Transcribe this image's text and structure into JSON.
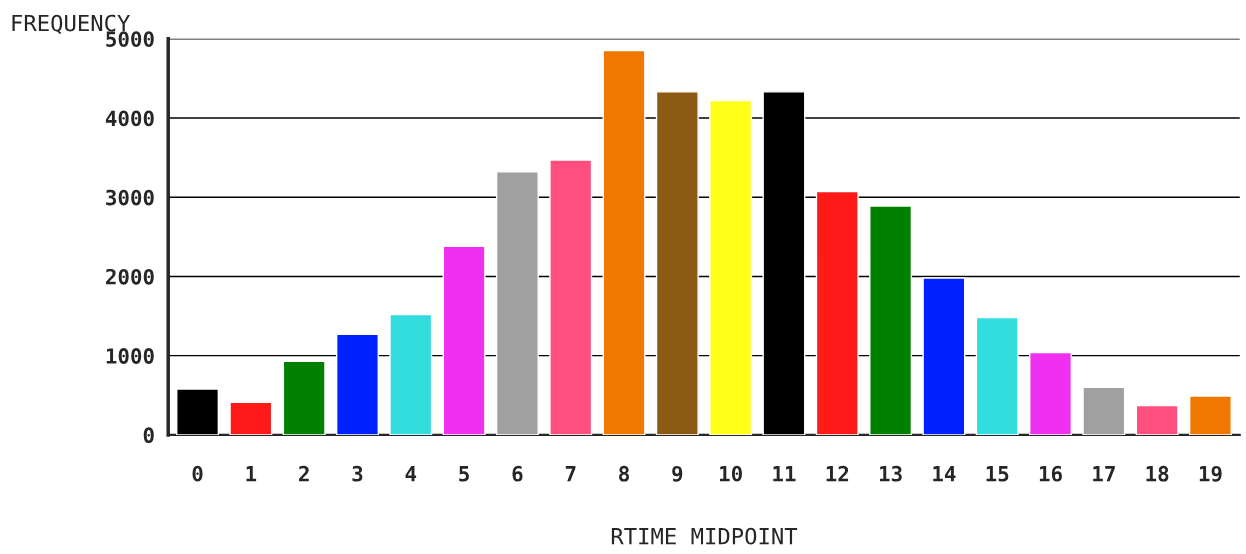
{
  "chart_data": {
    "type": "bar",
    "xlabel": "RTIME MIDPOINT",
    "ylabel": "FREQUENCY",
    "categories": [
      "0",
      "1",
      "2",
      "3",
      "4",
      "5",
      "6",
      "7",
      "8",
      "9",
      "10",
      "11",
      "12",
      "13",
      "14",
      "15",
      "16",
      "17",
      "18",
      "19"
    ],
    "values": [
      580,
      410,
      930,
      1270,
      1520,
      2380,
      3320,
      3470,
      4850,
      4330,
      4220,
      4330,
      3070,
      2890,
      1980,
      1480,
      1040,
      600,
      370,
      490
    ],
    "colors": [
      "#000000",
      "#ff1a1a",
      "#008000",
      "#0022ff",
      "#33dddd",
      "#f030f0",
      "#a0a0a0",
      "#ff4f7f",
      "#f07800",
      "#8b5a14",
      "#ffff1a",
      "#000000",
      "#ff1a1a",
      "#008000",
      "#0022ff",
      "#33dddd",
      "#f030f0",
      "#a0a0a0",
      "#ff4f7f",
      "#f07800"
    ],
    "ylim": [
      0,
      5000
    ],
    "yticks": [
      0,
      1000,
      2000,
      3000,
      4000,
      5000
    ],
    "grid": "y"
  }
}
